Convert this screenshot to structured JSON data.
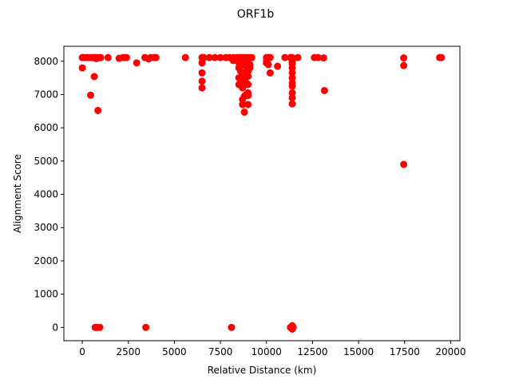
{
  "chart_data": {
    "type": "scatter",
    "title": "ORF1b",
    "xlabel": "Relative Distance (km)",
    "ylabel": "Alignment Score",
    "xlim": [
      -1000,
      20500
    ],
    "ylim": [
      -400,
      8450
    ],
    "xticks": [
      0,
      2500,
      5000,
      7500,
      10000,
      12500,
      15000,
      17500,
      20000
    ],
    "xtick_labels": [
      "0",
      "2500",
      "5000",
      "7500",
      "10000",
      "12500",
      "15000",
      "17500",
      "20000"
    ],
    "yticks": [
      0,
      1000,
      2000,
      3000,
      4000,
      5000,
      6000,
      7000,
      8000
    ],
    "ytick_labels": [
      "0",
      "1000",
      "2000",
      "3000",
      "4000",
      "5000",
      "6000",
      "7000",
      "8000"
    ],
    "grid": false,
    "marker_color": "#ff0000",
    "series": [
      {
        "points": [
          [
            0,
            8110
          ],
          [
            50,
            8110
          ],
          [
            120,
            8110
          ],
          [
            250,
            8110
          ],
          [
            300,
            8110
          ],
          [
            450,
            8110
          ],
          [
            550,
            8110
          ],
          [
            650,
            8110
          ],
          [
            700,
            8110
          ],
          [
            750,
            8080
          ],
          [
            800,
            8110
          ],
          [
            850,
            8100
          ],
          [
            950,
            8110
          ],
          [
            1000,
            8110
          ],
          [
            1400,
            8110
          ],
          [
            2000,
            8090
          ],
          [
            2200,
            8110
          ],
          [
            2300,
            8110
          ],
          [
            2400,
            8110
          ],
          [
            3400,
            8110
          ],
          [
            3600,
            8070
          ],
          [
            3700,
            8110
          ],
          [
            3900,
            8110
          ],
          [
            4000,
            8110
          ],
          [
            5600,
            8110
          ],
          [
            6500,
            8110
          ],
          [
            6600,
            8110
          ],
          [
            6900,
            8110
          ],
          [
            7200,
            8110
          ],
          [
            7500,
            8110
          ],
          [
            7800,
            8110
          ],
          [
            8000,
            8110
          ],
          [
            8200,
            8110
          ],
          [
            8400,
            8110
          ],
          [
            8500,
            8110
          ],
          [
            8600,
            8110
          ],
          [
            8700,
            8110
          ],
          [
            8800,
            8110
          ],
          [
            8900,
            8110
          ],
          [
            9000,
            8110
          ],
          [
            9100,
            8110
          ],
          [
            9200,
            8110
          ],
          [
            10000,
            8110
          ],
          [
            10100,
            8110
          ],
          [
            10200,
            8110
          ],
          [
            11000,
            8110
          ],
          [
            11300,
            8110
          ],
          [
            11400,
            8110
          ],
          [
            11700,
            8110
          ],
          [
            12600,
            8110
          ],
          [
            12800,
            8110
          ],
          [
            13100,
            8100
          ],
          [
            17450,
            8100
          ],
          [
            19400,
            8110
          ],
          [
            19500,
            8110
          ],
          [
            0,
            7800
          ],
          [
            650,
            7540
          ],
          [
            450,
            6980
          ],
          [
            850,
            6520
          ],
          [
            2950,
            7950
          ],
          [
            6500,
            7950
          ],
          [
            6500,
            7650
          ],
          [
            6500,
            7400
          ],
          [
            6500,
            7200
          ],
          [
            8200,
            8020
          ],
          [
            8500,
            7950
          ],
          [
            8500,
            7800
          ],
          [
            8500,
            7500
          ],
          [
            8500,
            7300
          ],
          [
            8600,
            8000
          ],
          [
            8600,
            7700
          ],
          [
            8600,
            7350
          ],
          [
            8700,
            7900
          ],
          [
            8700,
            7550
          ],
          [
            8700,
            7200
          ],
          [
            8700,
            6850
          ],
          [
            8700,
            6700
          ],
          [
            8800,
            7950
          ],
          [
            8800,
            7650
          ],
          [
            8800,
            7400
          ],
          [
            8800,
            6950
          ],
          [
            8800,
            6470
          ],
          [
            8900,
            7850
          ],
          [
            8900,
            7600
          ],
          [
            8900,
            7350
          ],
          [
            8900,
            7000
          ],
          [
            9000,
            7950
          ],
          [
            9000,
            7700
          ],
          [
            9000,
            7550
          ],
          [
            9000,
            7300
          ],
          [
            9000,
            7050
          ],
          [
            9000,
            6970
          ],
          [
            9000,
            6700
          ],
          [
            9100,
            7900
          ],
          [
            9100,
            7800
          ],
          [
            10000,
            8000
          ],
          [
            10000,
            7950
          ],
          [
            10100,
            7900
          ],
          [
            10200,
            7650
          ],
          [
            10600,
            7850
          ],
          [
            11400,
            8000
          ],
          [
            11400,
            7920
          ],
          [
            11400,
            7800
          ],
          [
            11400,
            7650
          ],
          [
            11400,
            7500
          ],
          [
            11400,
            7350
          ],
          [
            11400,
            7250
          ],
          [
            11400,
            7050
          ],
          [
            11400,
            6900
          ],
          [
            11400,
            6720
          ],
          [
            13150,
            7120
          ],
          [
            17450,
            7870
          ],
          [
            17450,
            4900
          ],
          [
            700,
            0
          ],
          [
            800,
            0
          ],
          [
            950,
            0
          ],
          [
            3450,
            0
          ],
          [
            8100,
            0
          ],
          [
            11300,
            0
          ],
          [
            11350,
            0
          ],
          [
            11400,
            0
          ],
          [
            11450,
            0
          ],
          [
            11400,
            50
          ],
          [
            11400,
            -50
          ]
        ]
      }
    ]
  }
}
